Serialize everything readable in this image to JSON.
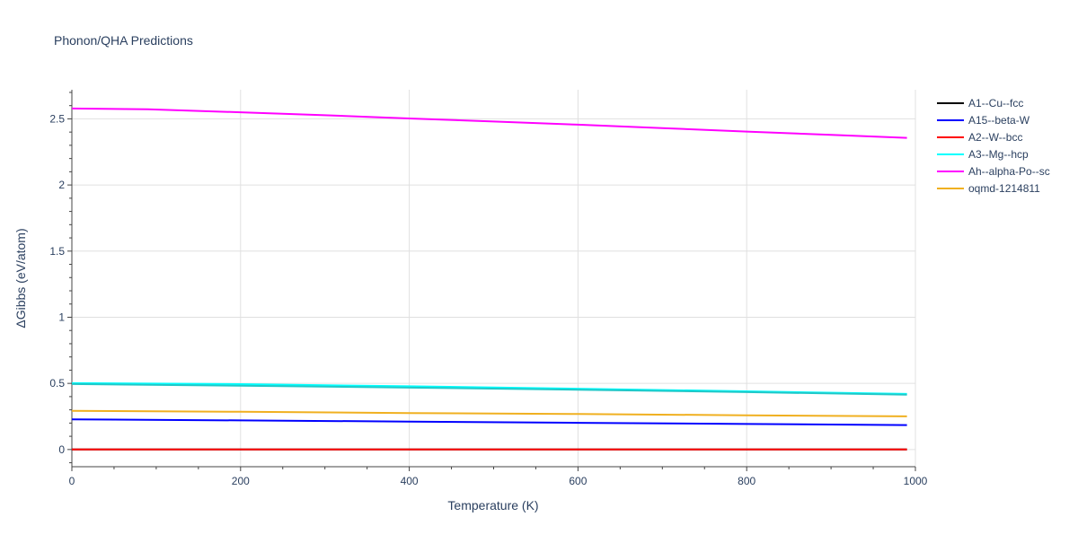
{
  "chart_data": {
    "type": "line",
    "title": "Phonon/QHA Predictions",
    "xlabel": "Temperature (K)",
    "ylabel": "ΔGibbs (eV/atom)",
    "xlim": [
      0,
      1000
    ],
    "ylim": [
      -0.13,
      2.72
    ],
    "x_ticks": [
      0,
      200,
      400,
      600,
      800,
      1000
    ],
    "y_ticks": [
      0,
      0.5,
      1,
      1.5,
      2,
      2.5
    ],
    "x_tick_labels": [
      "0",
      "200",
      "400",
      "600",
      "800",
      "1000"
    ],
    "y_tick_labels": [
      "0",
      "0.5",
      "1",
      "1.5",
      "2",
      "2.5"
    ],
    "grid": true,
    "legend_position": "right",
    "series": [
      {
        "name": "A1--Cu--fcc",
        "color": "#000000",
        "x": [
          0,
          990
        ],
        "y": [
          0,
          0
        ]
      },
      {
        "name": "A15--beta-W",
        "color": "#0000ff",
        "x": [
          0,
          200,
          400,
          600,
          800,
          990
        ],
        "y": [
          0.228,
          0.22,
          0.211,
          0.202,
          0.193,
          0.185
        ]
      },
      {
        "name": "A2--W--bcc",
        "color": "#ff0000",
        "x": [
          0,
          990
        ],
        "y": [
          0,
          0
        ]
      },
      {
        "name": "A3--Mg--hcp",
        "color": "#00ffff",
        "x": [
          0,
          200,
          400,
          600,
          800,
          990
        ],
        "y": [
          0.502,
          0.494,
          0.478,
          0.46,
          0.44,
          0.42
        ]
      },
      {
        "name": "Ah--alpha-Po--sc",
        "color": "#ff00ff",
        "x": [
          0,
          90,
          200,
          300,
          400,
          500,
          600,
          700,
          800,
          900,
          990
        ],
        "y": [
          2.578,
          2.572,
          2.55,
          2.527,
          2.503,
          2.48,
          2.456,
          2.43,
          2.404,
          2.379,
          2.356
        ]
      },
      {
        "name": "oqmd-1214811",
        "color": "#f0b020",
        "x": [
          0,
          200,
          400,
          600,
          800,
          990
        ],
        "y": [
          0.293,
          0.285,
          0.276,
          0.268,
          0.259,
          0.251
        ]
      },
      {
        "name": "",
        "color": "#21c8c8",
        "x": [
          0,
          200,
          400,
          600,
          800,
          990
        ],
        "y": [
          0.495,
          0.483,
          0.468,
          0.452,
          0.434,
          0.415
        ]
      }
    ]
  }
}
